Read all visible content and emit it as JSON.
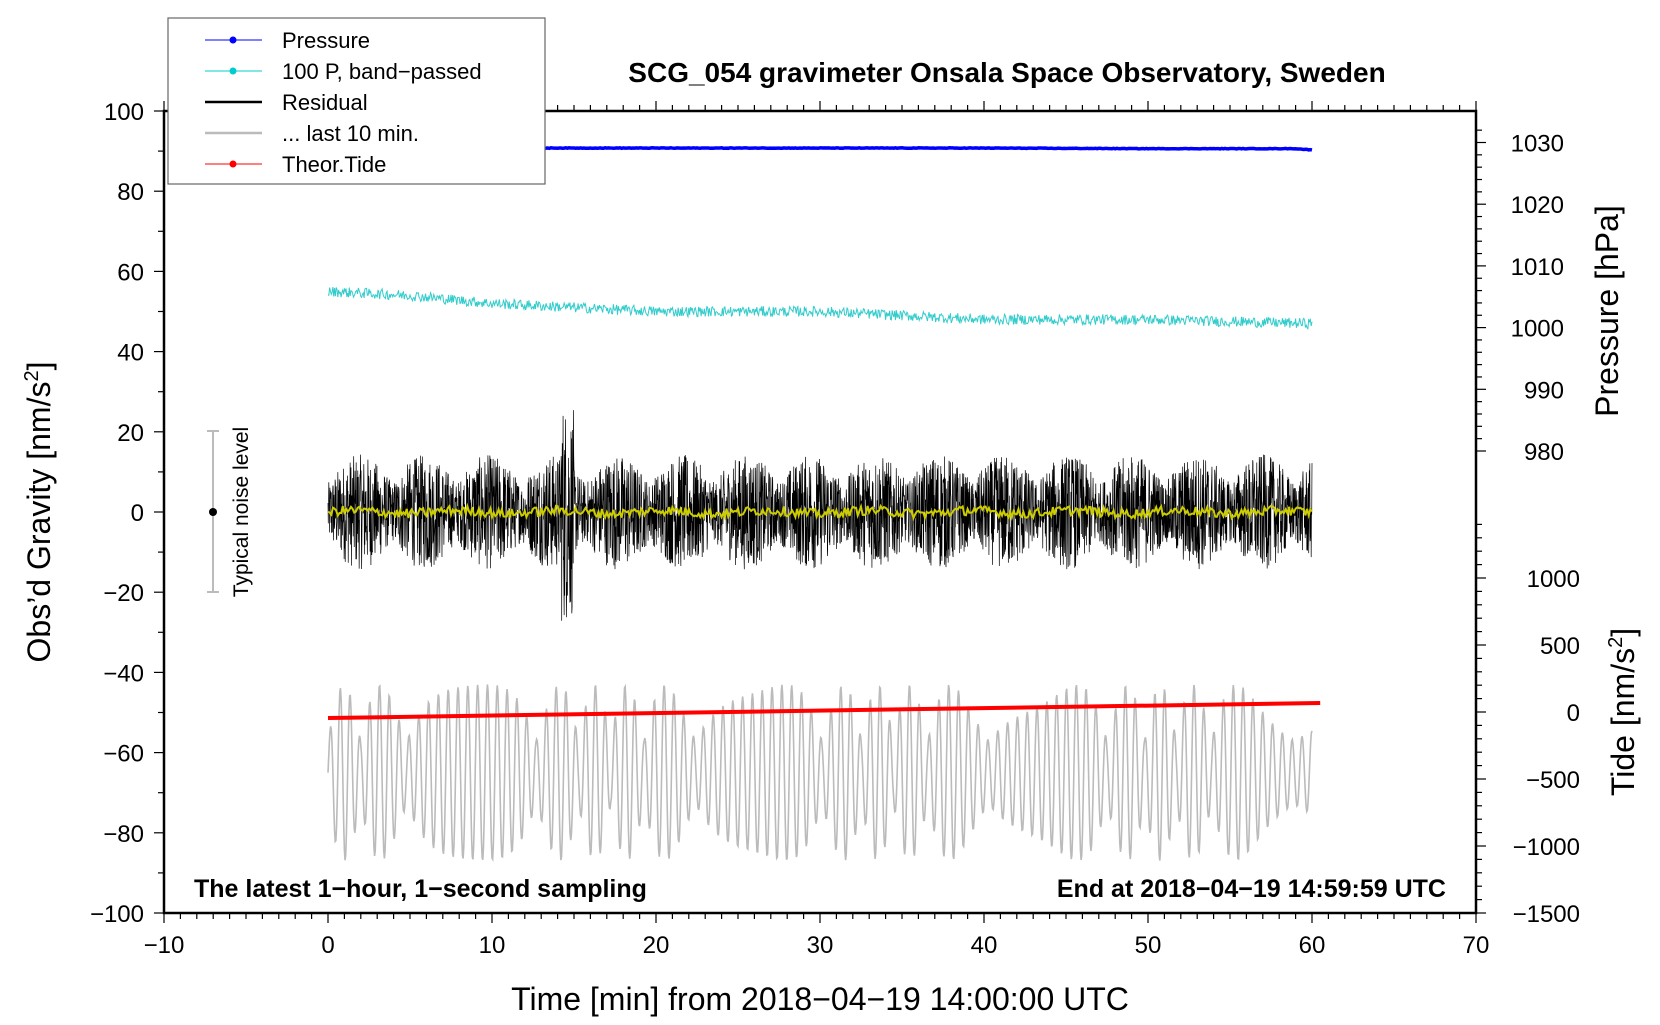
{
  "chart_data": {
    "type": "line",
    "title": "SCG_054 gravimeter Onsala Space Observatory, Sweden",
    "xlabel": "Time [min] from 2018−04−19 14:00:00 UTC",
    "ylabel": "Obs’d Gravity [nm/s",
    "ylabel_sup": "2",
    "ylabel_end": "]",
    "y2label": "Pressure [hPa]",
    "y3label": "Tide [nm/s",
    "y3label_sup": "2",
    "y3label_end": "]",
    "xlim": [
      -10,
      70
    ],
    "ylim": [
      -100,
      100
    ],
    "pressure_lim": [
      980,
      1030
    ],
    "tide_lim": [
      -1500,
      1000
    ],
    "xticks": [
      "−10",
      "0",
      "10",
      "20",
      "30",
      "40",
      "50",
      "60",
      "70"
    ],
    "yticks": [
      "−100",
      "−80",
      "−60",
      "−40",
      "−20",
      "0",
      "20",
      "40",
      "60",
      "80",
      "100"
    ],
    "pressure_ticks": [
      "980",
      "990",
      "1000",
      "1010",
      "1020",
      "1030"
    ],
    "tide_ticks": [
      "−1500",
      "−1000",
      "−500",
      "0",
      "500",
      "1000"
    ],
    "annotation_left": "The latest 1−hour, 1−second sampling",
    "annotation_right": "End at 2018−04−19 14:59:59 UTC",
    "noise_label": "Typical noise level",
    "noise_range": [
      -20,
      20
    ],
    "legend_position": "top-left",
    "legend": [
      {
        "label": "Pressure",
        "color": "#0000ff",
        "marker": true
      },
      {
        "label": "100 P, band−passed",
        "color": "#00cccc",
        "marker": true
      },
      {
        "label": "Residual",
        "color": "#000000",
        "marker": false
      },
      {
        "label": "... last 10 min.",
        "color": "#bbbbbb",
        "marker": false
      },
      {
        "label": "Theor.Tide",
        "color": "#ff0000",
        "marker": true
      }
    ],
    "series": [
      {
        "name": "Pressure",
        "axis": "pressure_hPa",
        "x": [
          0,
          10,
          20,
          30,
          40,
          50,
          59,
          60
        ],
        "values": [
          1029.1,
          1029.1,
          1029.1,
          1029.1,
          1029.1,
          1029.0,
          1029.0,
          1028.8
        ]
      },
      {
        "name": "100 P, band-passed",
        "axis": "gravity",
        "x": [
          0,
          5,
          10,
          15,
          20,
          25,
          30,
          35,
          40,
          45,
          50,
          55,
          60
        ],
        "values": [
          55,
          54,
          52,
          51,
          50,
          50,
          50,
          49,
          48,
          48,
          48,
          47.5,
          47
        ]
      },
      {
        "name": "Residual",
        "axis": "gravity",
        "x": [
          0,
          60
        ],
        "values": [
          0,
          0
        ],
        "noise_amplitude": 20,
        "max": 40,
        "min": -32
      },
      {
        "name": "Residual smoothed",
        "color": "#cccc00",
        "axis": "gravity",
        "x": [
          0,
          60
        ],
        "values": [
          0,
          0
        ]
      },
      {
        "name": "... last 10 min.",
        "axis": "gravity",
        "x": [
          0,
          60
        ],
        "values": [
          -65,
          -65
        ],
        "min": -86,
        "max": -38
      },
      {
        "name": "Theor.Tide",
        "axis": "tide_nm_s2",
        "x": [
          0,
          60.5
        ],
        "values": [
          -45,
          67
        ]
      }
    ]
  }
}
